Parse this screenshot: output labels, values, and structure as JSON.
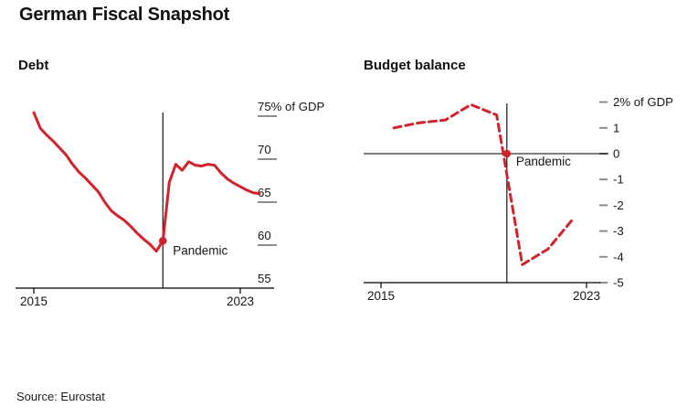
{
  "page": {
    "title": "German Fiscal Snapshot",
    "source": "Source: Eurostat"
  },
  "colors": {
    "line_red": "#d1232b",
    "axis_black": "#000000",
    "tick_gray": "#8d8d8d",
    "text_black": "#161616"
  },
  "chart_data": [
    {
      "key": "debt",
      "type": "line",
      "title": "Debt",
      "line_style": "solid",
      "unit": "% of GDP",
      "frequency": "quarterly",
      "x": [
        2015.0,
        2015.25,
        2015.5,
        2015.75,
        2016.0,
        2016.25,
        2016.5,
        2016.75,
        2017.0,
        2017.25,
        2017.5,
        2017.75,
        2018.0,
        2018.25,
        2018.5,
        2018.75,
        2019.0,
        2019.25,
        2019.5,
        2019.75,
        2020.0,
        2020.25,
        2020.5,
        2020.75,
        2021.0,
        2021.25,
        2021.5,
        2021.75,
        2022.0,
        2022.25,
        2022.5,
        2022.75,
        2023.0,
        2023.25,
        2023.5,
        2023.75
      ],
      "values": [
        75.4,
        73.6,
        72.8,
        72.1,
        71.3,
        70.5,
        69.4,
        68.5,
        67.8,
        67.0,
        66.2,
        65.0,
        64.0,
        63.4,
        62.9,
        62.2,
        61.4,
        60.7,
        60.1,
        59.3,
        60.5,
        67.3,
        69.4,
        68.7,
        69.7,
        69.3,
        69.2,
        69.4,
        69.3,
        68.4,
        67.7,
        67.2,
        66.8,
        66.4,
        66.1,
        66.0
      ],
      "ylim": [
        55,
        75.5
      ],
      "xlim": [
        2014.3,
        2024.3
      ],
      "y_ticks": [
        {
          "value": 75,
          "label": "75% of GDP"
        },
        {
          "value": 70,
          "label": "70"
        },
        {
          "value": 65,
          "label": "65"
        },
        {
          "value": 60,
          "label": "60"
        },
        {
          "value": 55,
          "label": "55"
        }
      ],
      "x_ticks": [
        {
          "value": 2015,
          "label": "2015"
        },
        {
          "value": 2023,
          "label": "2023"
        }
      ],
      "vline_x": 2020.0,
      "marker": {
        "x": 2020.0,
        "y": 60.5
      },
      "annotation": {
        "label": "Pandemic",
        "x": 2020.0,
        "y": 60.5
      }
    },
    {
      "key": "budget-balance",
      "type": "line",
      "title": "Budget balance",
      "line_style": "dashed",
      "unit": "% of GDP",
      "frequency": "annual",
      "years": [
        2015,
        2016,
        2017,
        2018,
        2019,
        2020,
        2021,
        2022
      ],
      "x": [
        2015.5,
        2016.5,
        2017.5,
        2018.5,
        2019.5,
        2020.5,
        2021.5,
        2022.5
      ],
      "values": [
        1.0,
        1.2,
        1.3,
        1.9,
        1.5,
        -4.3,
        -3.7,
        -2.5
      ],
      "ylim": [
        -5,
        2
      ],
      "xlim": [
        2014.3,
        2023.5
      ],
      "zero_line": true,
      "y_ticks": [
        {
          "value": 2,
          "label": "2% of GDP"
        },
        {
          "value": 1,
          "label": "1"
        },
        {
          "value": 0,
          "label": "0"
        },
        {
          "value": -1,
          "label": "-1"
        },
        {
          "value": -2,
          "label": "-2"
        },
        {
          "value": -3,
          "label": "-3"
        },
        {
          "value": -4,
          "label": "-4"
        },
        {
          "value": -5,
          "label": "-5"
        }
      ],
      "x_ticks": [
        {
          "value": 2015,
          "label": "2015"
        },
        {
          "value": 2023,
          "label": "2023"
        }
      ],
      "vline_x": 2019.9,
      "marker": {
        "x": 2019.9,
        "y": 0
      },
      "annotation": {
        "label": "Pandemic",
        "x": 2019.9,
        "y": 0
      }
    }
  ]
}
